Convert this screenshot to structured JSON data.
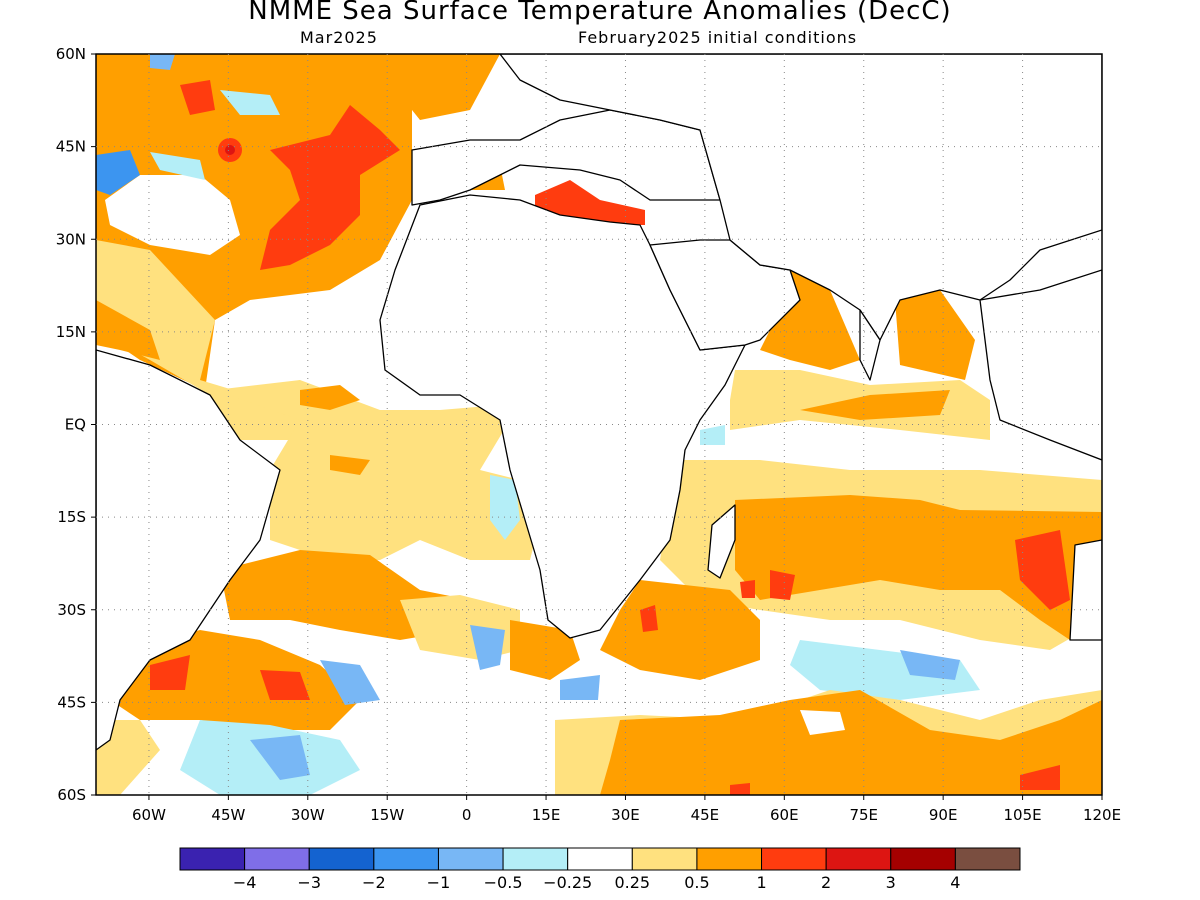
{
  "title": "NMME Sea Surface Temperature Anomalies (DecC)",
  "subtitle_left": "Mar2025",
  "subtitle_right": "February2025 initial conditions",
  "map": {
    "lon_range": [
      -70,
      120
    ],
    "lat_range": [
      -60,
      60
    ],
    "lon_ticks": [
      {
        "value": -60,
        "label": "60W"
      },
      {
        "value": -45,
        "label": "45W"
      },
      {
        "value": -30,
        "label": "30W"
      },
      {
        "value": -15,
        "label": "15W"
      },
      {
        "value": 0,
        "label": "0"
      },
      {
        "value": 15,
        "label": "15E"
      },
      {
        "value": 30,
        "label": "30E"
      },
      {
        "value": 45,
        "label": "45E"
      },
      {
        "value": 60,
        "label": "60E"
      },
      {
        "value": 75,
        "label": "75E"
      },
      {
        "value": 90,
        "label": "90E"
      },
      {
        "value": 105,
        "label": "105E"
      },
      {
        "value": 120,
        "label": "120E"
      }
    ],
    "lat_ticks": [
      {
        "value": 60,
        "label": "60N"
      },
      {
        "value": 45,
        "label": "45N"
      },
      {
        "value": 30,
        "label": "30N"
      },
      {
        "value": 15,
        "label": "15N"
      },
      {
        "value": 0,
        "label": "EQ"
      },
      {
        "value": -15,
        "label": "15S"
      },
      {
        "value": -30,
        "label": "30S"
      },
      {
        "value": -45,
        "label": "45S"
      },
      {
        "value": -60,
        "label": "60S"
      }
    ],
    "grid": "dotted"
  },
  "colorbar": {
    "colors": [
      "#3a22b0",
      "#7f6ee8",
      "#1463d0",
      "#3c95f0",
      "#78b7f5",
      "#b4eef7",
      "#ffffff",
      "#ffe17f",
      "#ff9f00",
      "#ff3c0f",
      "#dd1512",
      "#a50000",
      "#7a4e40"
    ],
    "labels": [
      "-4",
      "-3",
      "-2",
      "-1",
      "-0.5",
      "-0.25",
      "0.25",
      "0.5",
      "1",
      "2",
      "3",
      "4"
    ]
  }
}
